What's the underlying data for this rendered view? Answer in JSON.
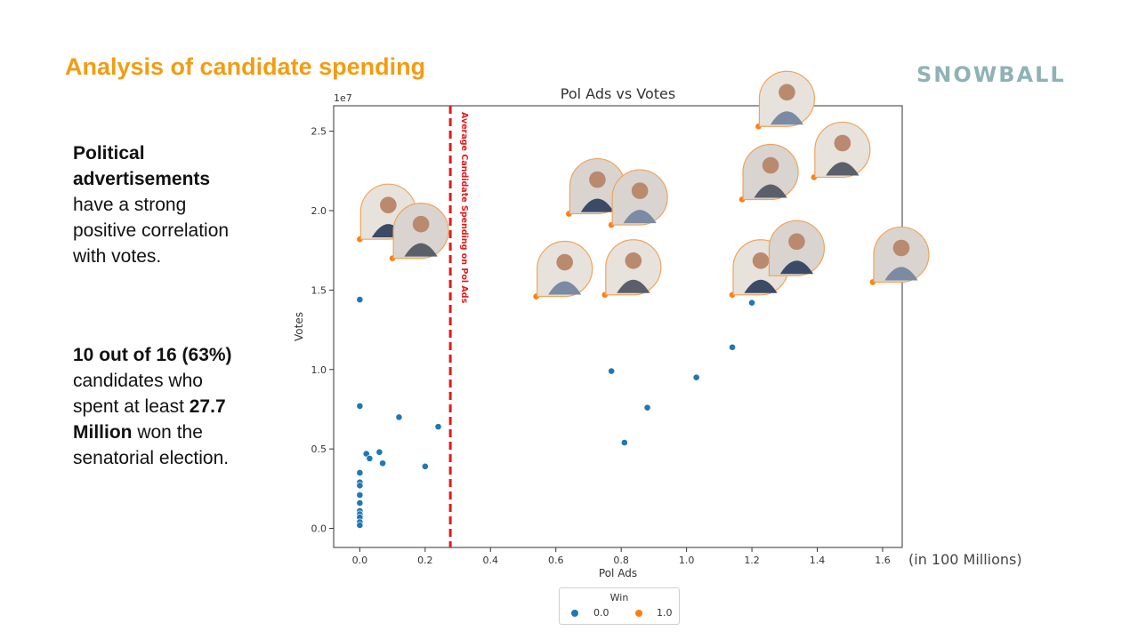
{
  "slide": {
    "title": "Analysis of candidate spending",
    "brand": "SNOWBALL",
    "para1": {
      "bold": "Political advertisements",
      "rest": " have a strong positive correlation with votes."
    },
    "para2": {
      "bold1": "10 out of 16 (63%)",
      "mid": " candidates who spent at least ",
      "bold2": "27.7 Million",
      "rest": " won the senatorial election."
    },
    "unit_note": "(in 100 Millions)"
  },
  "chart_data": {
    "type": "scatter",
    "title": "Pol Ads vs Votes",
    "xlabel": "Pol Ads",
    "ylabel": "Votes",
    "y_offset_label": "1e7",
    "xlim": [
      -0.08,
      1.66
    ],
    "ylim": [
      -0.12,
      2.66
    ],
    "xticks": [
      "0.0",
      "0.2",
      "0.4",
      "0.6",
      "0.8",
      "1.0",
      "1.2",
      "1.4",
      "1.6"
    ],
    "xtick_values": [
      0,
      0.2,
      0.4,
      0.6,
      0.8,
      1.0,
      1.2,
      1.4,
      1.6
    ],
    "yticks": [
      "0.0",
      "0.5",
      "1.0",
      "1.5",
      "2.0",
      "2.5"
    ],
    "ytick_values": [
      0,
      0.5,
      1.0,
      1.5,
      2.0,
      2.5
    ],
    "grid": false,
    "legend": {
      "title": "Win",
      "placement": "bottom-center",
      "entries": [
        "0.0",
        "1.0"
      ]
    },
    "threshold": {
      "x": 0.277,
      "label": "Average Candidate Spending on Pol Ads",
      "color": "#e31a1c"
    },
    "series": [
      {
        "name": "0.0",
        "color": "#1f77b4",
        "points": [
          [
            0.0,
            1.44
          ],
          [
            0.0,
            0.77
          ],
          [
            0.0,
            0.35
          ],
          [
            0.0,
            0.29
          ],
          [
            0.0,
            0.27
          ],
          [
            0.0,
            0.21
          ],
          [
            0.0,
            0.16
          ],
          [
            0.0,
            0.11
          ],
          [
            0.0,
            0.09
          ],
          [
            0.0,
            0.07
          ],
          [
            0.0,
            0.04
          ],
          [
            0.0,
            0.02
          ],
          [
            0.02,
            0.47
          ],
          [
            0.03,
            0.44
          ],
          [
            0.06,
            0.48
          ],
          [
            0.07,
            0.41
          ],
          [
            0.12,
            0.7
          ],
          [
            0.2,
            0.39
          ],
          [
            0.24,
            0.64
          ],
          [
            0.77,
            0.99
          ],
          [
            0.81,
            0.54
          ],
          [
            0.88,
            0.76
          ],
          [
            1.03,
            0.95
          ],
          [
            1.14,
            1.14
          ],
          [
            1.2,
            1.42
          ]
        ]
      },
      {
        "name": "1.0",
        "color": "#ff7f0e",
        "points": [
          [
            0.0,
            1.82
          ],
          [
            0.1,
            1.7
          ],
          [
            0.54,
            1.46
          ],
          [
            0.64,
            1.98
          ],
          [
            0.75,
            1.47
          ],
          [
            0.77,
            1.91
          ],
          [
            1.14,
            1.47
          ],
          [
            1.17,
            2.07
          ],
          [
            1.22,
            2.53
          ],
          [
            1.25,
            1.59
          ],
          [
            1.39,
            2.21
          ],
          [
            1.57,
            1.55
          ]
        ]
      }
    ]
  }
}
